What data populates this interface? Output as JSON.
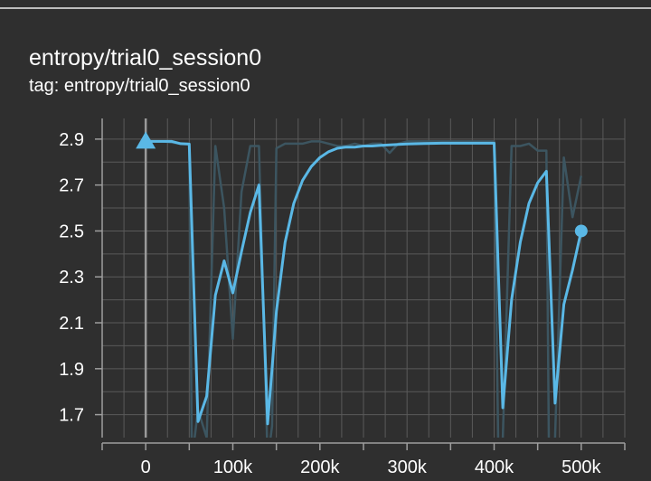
{
  "card": {
    "title": "entropy/trial0_session0",
    "tag": "tag: entropy/trial0_session0"
  },
  "colors": {
    "background": "#2f2f2f",
    "grid": "#5a5a5a",
    "axis": "#9e9e9e",
    "smoothed": "#5ab8e6",
    "raw": "#3c5560",
    "text": "#ffffff"
  },
  "chart_data": {
    "type": "line",
    "title": "",
    "xlabel": "",
    "ylabel": "",
    "xlim": [
      -50000,
      550000
    ],
    "ylim": [
      1.6,
      2.99
    ],
    "x_ticks": [
      0,
      100000,
      200000,
      300000,
      400000,
      500000
    ],
    "x_tick_labels": [
      "0",
      "100k",
      "200k",
      "300k",
      "400k",
      "500k"
    ],
    "y_ticks": [
      1.7,
      1.9,
      2.1,
      2.3,
      2.5,
      2.7,
      2.9
    ],
    "y_tick_labels": [
      "1.7",
      "1.9",
      "2.1",
      "2.3",
      "2.5",
      "2.7",
      "2.9"
    ],
    "grid": true,
    "legend": "none",
    "series": [
      {
        "role": "raw",
        "x": [
          0,
          10000,
          20000,
          30000,
          40000,
          50000,
          53000,
          60000,
          70000,
          80000,
          90000,
          100000,
          110000,
          120000,
          130000,
          140000,
          145000,
          150000,
          160000,
          170000,
          180000,
          190000,
          200000,
          210000,
          220000,
          230000,
          240000,
          250000,
          260000,
          270000,
          280000,
          290000,
          300000,
          310000,
          320000,
          330000,
          340000,
          350000,
          360000,
          370000,
          380000,
          390000,
          400000,
          405000,
          410000,
          420000,
          430000,
          440000,
          450000,
          460000,
          463000,
          470000,
          480000,
          490000,
          500000
        ],
        "y": [
          2.89,
          2.89,
          2.89,
          2.885,
          2.88,
          2.88,
          1.5,
          1.72,
          1.6,
          2.87,
          2.6,
          2.03,
          2.67,
          2.87,
          2.87,
          1.5,
          1.65,
          2.86,
          2.88,
          2.88,
          2.88,
          2.89,
          2.89,
          2.88,
          2.87,
          2.87,
          2.88,
          2.87,
          2.88,
          2.88,
          2.84,
          2.88,
          2.89,
          2.89,
          2.89,
          2.89,
          2.89,
          2.89,
          2.89,
          2.89,
          2.89,
          2.89,
          2.89,
          1.5,
          1.6,
          2.87,
          2.87,
          2.88,
          2.85,
          2.85,
          1.5,
          1.6,
          2.82,
          2.56,
          2.74
        ]
      },
      {
        "role": "smoothed",
        "x": [
          0,
          10000,
          20000,
          30000,
          40000,
          50000,
          60000,
          70000,
          80000,
          90000,
          100000,
          110000,
          120000,
          130000,
          140000,
          145000,
          150000,
          160000,
          170000,
          180000,
          190000,
          200000,
          210000,
          220000,
          230000,
          240000,
          250000,
          260000,
          270000,
          280000,
          290000,
          300000,
          320000,
          340000,
          360000,
          380000,
          400000,
          410000,
          420000,
          430000,
          440000,
          450000,
          460000,
          470000,
          480000,
          490000,
          500000
        ],
        "y": [
          2.89,
          2.89,
          2.89,
          2.89,
          2.88,
          2.878,
          1.67,
          1.78,
          2.22,
          2.37,
          2.23,
          2.41,
          2.58,
          2.7,
          1.66,
          1.9,
          2.15,
          2.45,
          2.62,
          2.72,
          2.78,
          2.82,
          2.845,
          2.86,
          2.865,
          2.865,
          2.87,
          2.87,
          2.873,
          2.875,
          2.877,
          2.879,
          2.881,
          2.882,
          2.882,
          2.882,
          2.882,
          1.73,
          2.2,
          2.45,
          2.62,
          2.71,
          2.76,
          1.75,
          2.18,
          2.33,
          2.5
        ]
      }
    ],
    "start_marker": {
      "x": 0,
      "y": 2.89,
      "shape": "triangle"
    },
    "end_marker": {
      "x": 500000,
      "y": 2.5,
      "shape": "circle"
    }
  }
}
